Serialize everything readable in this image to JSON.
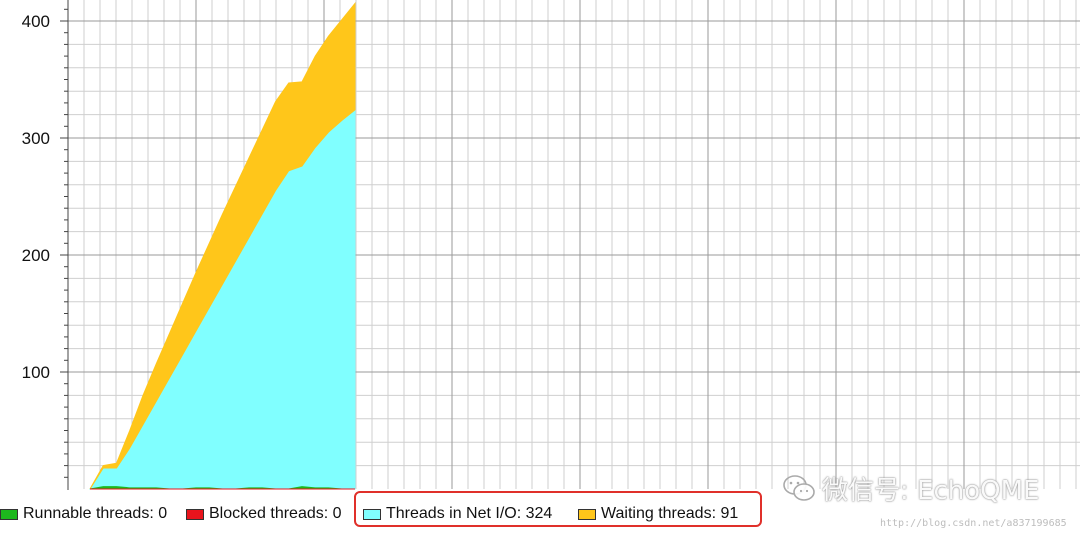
{
  "chart_data": {
    "type": "area",
    "stacked": true,
    "yticks": [
      100,
      200,
      300,
      400
    ],
    "ylim": [
      0,
      420
    ],
    "x": [
      0,
      1,
      2,
      3,
      4,
      5,
      6,
      7,
      8,
      9,
      10,
      11,
      12,
      13,
      14,
      15,
      16,
      17,
      18,
      19,
      20
    ],
    "series": [
      {
        "name": "Runnable threads: 0",
        "color": "#1db81d",
        "values": [
          0,
          2,
          2,
          1,
          1,
          1,
          0,
          0,
          1,
          1,
          0,
          0,
          1,
          1,
          0,
          0,
          2,
          1,
          1,
          0,
          0
        ]
      },
      {
        "name": "Blocked threads: 0",
        "color": "#e8141c",
        "values": [
          0,
          0,
          0,
          0,
          0,
          0,
          0,
          0,
          0,
          0,
          0,
          0,
          0,
          0,
          0,
          0,
          0,
          0,
          0,
          0,
          0
        ]
      },
      {
        "name": "Threads in Net I/O: 324",
        "color": "#80ffff",
        "values": [
          0,
          18,
          18,
          35,
          55,
          75,
          95,
          115,
          135,
          155,
          175,
          195,
          215,
          235,
          255,
          272,
          276,
          292,
          305,
          315,
          324
        ]
      },
      {
        "name": "Waiting threads: 91",
        "color": "#ffc61a",
        "values": [
          0,
          2,
          4,
          15,
          25,
          32,
          38,
          44,
          50,
          55,
          60,
          64,
          68,
          72,
          76,
          75,
          72,
          78,
          82,
          86,
          91
        ]
      }
    ],
    "grid": true,
    "legend_position": "bottom-left"
  },
  "watermark": {
    "text": "微信号: EchoQME",
    "url": "http://blog.csdn.net/a837199685"
  }
}
